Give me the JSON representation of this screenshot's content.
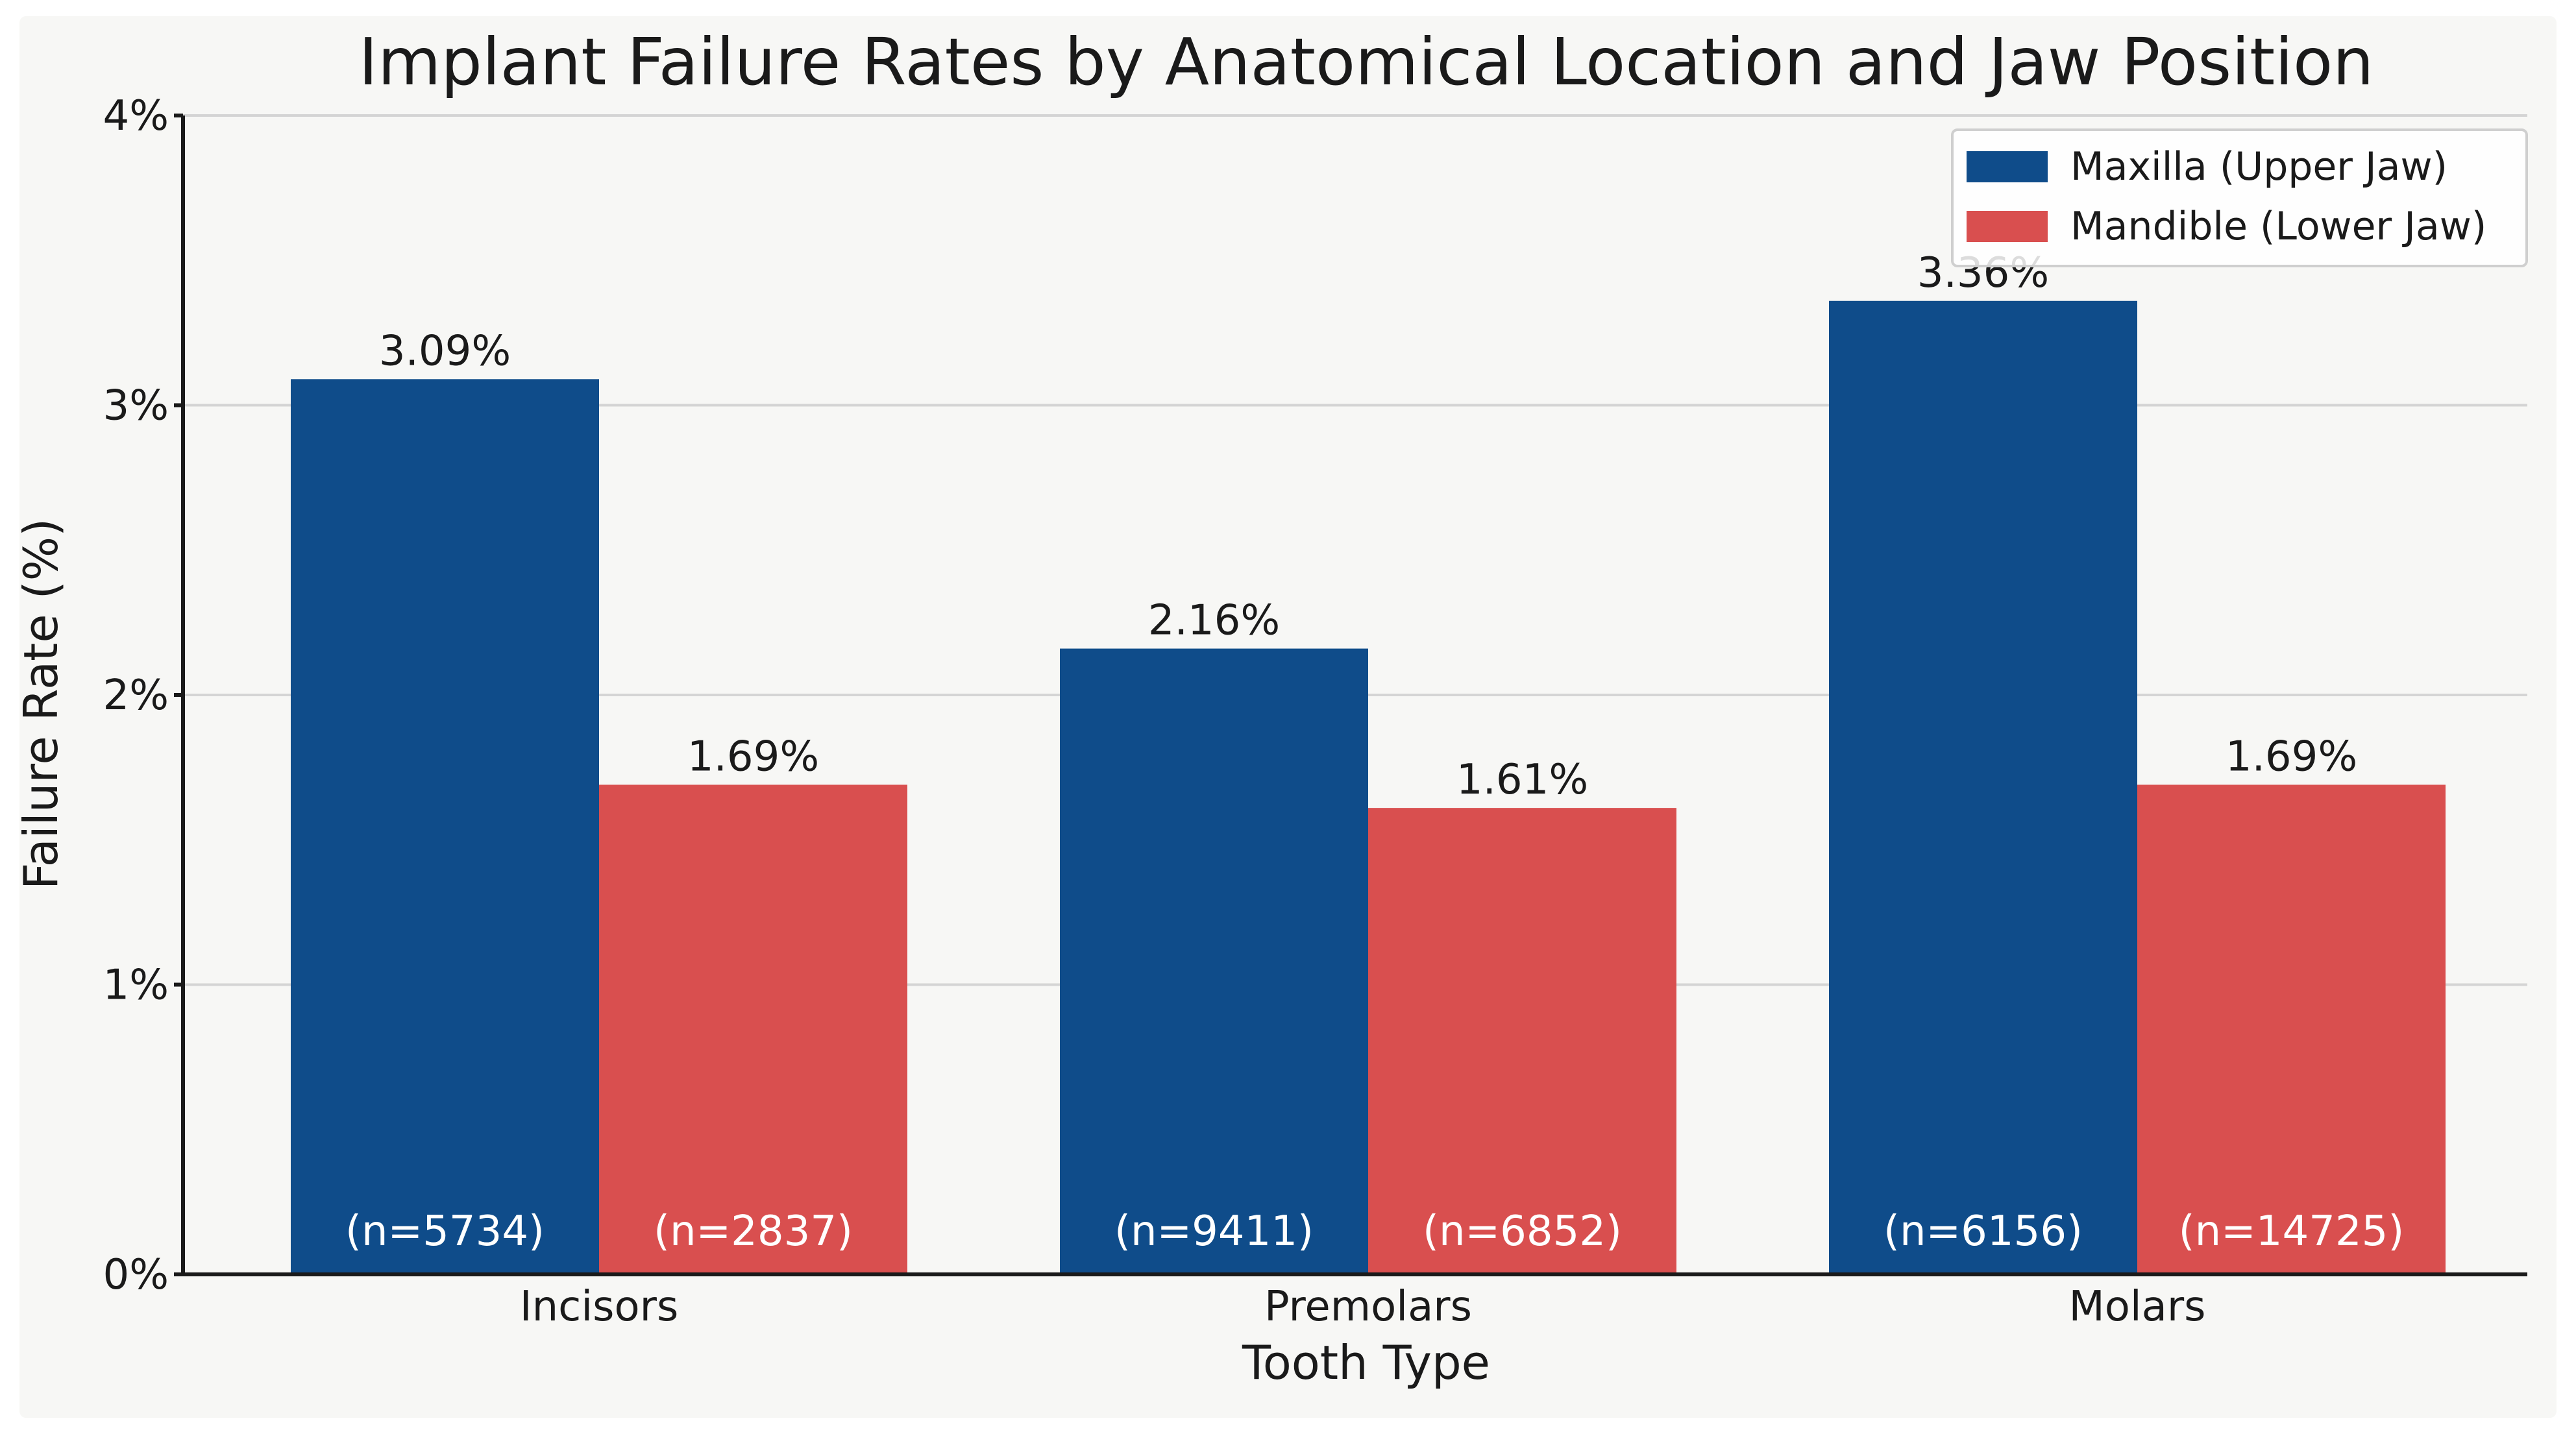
{
  "chart_data": {
    "type": "bar",
    "title": "Implant Failure Rates by Anatomical Location and Jaw Position",
    "xlabel": "Tooth Type",
    "ylabel": "Failure Rate (%)",
    "categories": [
      "Incisors",
      "Premolars",
      "Molars"
    ],
    "ylim": [
      0,
      4
    ],
    "yticks": [
      0,
      1,
      2,
      3,
      4
    ],
    "ytick_labels": [
      "0%",
      "1%",
      "2%",
      "3%",
      "4%"
    ],
    "grid": "horizontal",
    "legend_position": "top-right",
    "series": [
      {
        "name": "Maxilla (Upper Jaw)",
        "color": "#0f4c8a",
        "values": [
          3.09,
          2.16,
          3.36
        ],
        "value_labels": [
          "3.09%",
          "2.16%",
          "3.36%"
        ],
        "n_labels": [
          "(n=5734)",
          "(n=9411)",
          "(n=6156)"
        ]
      },
      {
        "name": "Mandible (Lower Jaw)",
        "color": "#d94f4f",
        "values": [
          1.69,
          1.61,
          1.69
        ],
        "value_labels": [
          "1.69%",
          "1.61%",
          "1.69%"
        ],
        "n_labels": [
          "(n=2837)",
          "(n=6852)",
          "(n=14725)"
        ]
      }
    ]
  }
}
